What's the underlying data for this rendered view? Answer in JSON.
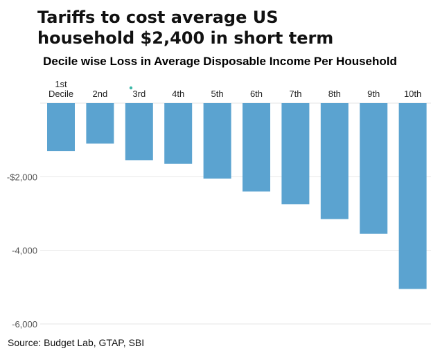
{
  "title_line1": "Tariffs to cost average US",
  "title_line2": "household $2,400 in short term",
  "source": "Source: Budget Lab, GTAP, SBI",
  "colors": {
    "bar": "#5ba3d0",
    "grid": "#e6e6e6",
    "marker": "#3db8a8"
  },
  "chart_data": {
    "type": "bar",
    "title": "Decile wise Loss in Average Disposable Income Per Household",
    "xlabel": "",
    "ylabel": "",
    "categories": [
      "1st\nDecile",
      "2nd",
      "3rd",
      "4th",
      "5th",
      "6th",
      "7th",
      "8th",
      "9th",
      "10th"
    ],
    "values": [
      -1300,
      -1100,
      -1550,
      -1650,
      -2050,
      -2400,
      -2750,
      -3150,
      -3550,
      -5050
    ],
    "ylim": [
      -6000,
      0
    ],
    "yticks": [
      -2000,
      -4000,
      -6000
    ],
    "ytick_labels": [
      "-$2,000",
      "-4,000",
      "-6,000"
    ],
    "grid": true,
    "legend": "none"
  }
}
